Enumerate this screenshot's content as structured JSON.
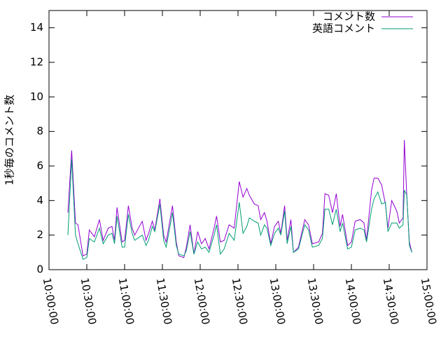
{
  "chart_data": {
    "type": "line",
    "ylabel": "1秒毎のコメント数",
    "x": [
      "10:15:00",
      "10:18:00",
      "10:21:00",
      "10:23:00",
      "10:27:00",
      "10:30:00",
      "10:32:00",
      "10:36:00",
      "10:40:00",
      "10:43:00",
      "10:47:00",
      "10:50:00",
      "10:52:00",
      "10:54:00",
      "10:58:00",
      "11:00:00",
      "11:03:00",
      "11:06:00",
      "11:08:00",
      "11:14:00",
      "11:17:00",
      "11:19:00",
      "11:22:00",
      "11:24:00",
      "11:28:00",
      "11:31:00",
      "11:33:00",
      "11:38:00",
      "11:41:00",
      "11:43:00",
      "11:47:00",
      "11:49:00",
      "11:52:00",
      "11:55:00",
      "11:58:00",
      "12:01:00",
      "12:04:00",
      "12:07:00",
      "12:11:00",
      "12:13:00",
      "12:16:00",
      "12:19:00",
      "12:23:00",
      "12:27:00",
      "12:31:00",
      "12:34:00",
      "12:37:00",
      "12:39:00",
      "12:43:00",
      "12:46:00",
      "12:48:00",
      "12:51:00",
      "12:53:00",
      "12:56:00",
      "12:59:00",
      "13:02:00",
      "13:04:00",
      "13:07:00",
      "13:09:00",
      "13:12:00",
      "13:14:00",
      "13:18:00",
      "13:23:00",
      "13:26:00",
      "13:29:00",
      "13:34:00",
      "13:37:00",
      "13:39:00",
      "13:42:00",
      "13:45:00",
      "13:48:00",
      "13:51:00",
      "13:53:00",
      "13:57:00",
      "14:00:00",
      "14:03:00",
      "14:07:00",
      "14:10:00",
      "14:12:00",
      "14:16:00",
      "14:18:00",
      "14:21:00",
      "14:24:00",
      "14:27:00",
      "14:29:00",
      "14:32:00",
      "14:36:00",
      "14:38:00",
      "14:41:00",
      "14:42:00",
      "14:44:00",
      "14:46:00",
      "14:48:00"
    ],
    "series": [
      {
        "name": "コメント数",
        "color": "#9400d3",
        "values": [
          3.3,
          6.9,
          2.7,
          2.6,
          0.8,
          0.9,
          2.3,
          1.9,
          2.9,
          1.7,
          2.4,
          2.5,
          1.7,
          3.6,
          1.6,
          1.7,
          3.7,
          2.4,
          2.0,
          2.8,
          1.7,
          2.1,
          2.8,
          2.3,
          4.1,
          2.0,
          1.6,
          3.7,
          1.6,
          0.8,
          0.7,
          1.3,
          2.6,
          0.9,
          2.2,
          1.5,
          1.8,
          1.2,
          2.4,
          3.1,
          1.6,
          1.7,
          2.6,
          2.4,
          5.1,
          4.2,
          4.7,
          4.3,
          3.8,
          3.7,
          2.9,
          3.3,
          2.8,
          1.5,
          2.5,
          2.8,
          2.1,
          3.7,
          1.7,
          2.9,
          1.0,
          1.3,
          2.9,
          2.6,
          1.5,
          1.6,
          2.1,
          4.4,
          4.3,
          3.3,
          4.4,
          2.5,
          3.2,
          1.4,
          1.6,
          2.8,
          2.9,
          2.7,
          1.7,
          4.6,
          5.3,
          5.3,
          4.9,
          3.8,
          2.4,
          4.0,
          3.4,
          2.7,
          3.0,
          7.5,
          4.2,
          1.6,
          1.0
        ]
      },
      {
        "name": "英語コメント",
        "color": "#009e73",
        "values": [
          2.0,
          6.4,
          2.0,
          1.5,
          0.6,
          0.7,
          1.8,
          1.6,
          2.4,
          1.5,
          2.0,
          2.1,
          1.5,
          3.1,
          1.3,
          1.3,
          3.2,
          2.1,
          1.7,
          2.0,
          1.4,
          1.7,
          2.5,
          2.2,
          3.8,
          1.7,
          1.3,
          3.3,
          1.4,
          0.9,
          0.8,
          1.1,
          2.2,
          0.9,
          1.6,
          1.2,
          1.3,
          1.0,
          2.0,
          2.6,
          0.9,
          1.2,
          2.1,
          1.7,
          3.9,
          2.1,
          2.5,
          3.0,
          2.8,
          2.7,
          2.0,
          2.6,
          2.4,
          1.4,
          2.1,
          2.4,
          2.0,
          3.4,
          1.5,
          2.5,
          1.0,
          1.2,
          2.6,
          2.3,
          1.3,
          1.4,
          1.8,
          3.5,
          3.5,
          2.6,
          3.5,
          2.2,
          2.7,
          1.2,
          1.3,
          2.3,
          2.4,
          2.3,
          1.6,
          3.5,
          4.1,
          4.5,
          3.8,
          3.9,
          2.2,
          2.7,
          2.7,
          2.4,
          2.6,
          4.6,
          4.3,
          1.4,
          1.0
        ]
      }
    ],
    "xlim": [
      "10:00:00",
      "15:00:00"
    ],
    "xticks": [
      "10:00:00",
      "10:30:00",
      "11:00:00",
      "11:30:00",
      "12:00:00",
      "12:30:00",
      "13:00:00",
      "13:30:00",
      "14:00:00",
      "14:30:00",
      "15:00:00"
    ],
    "ylim": [
      0,
      15
    ],
    "yticks": [
      0,
      2,
      4,
      6,
      8,
      10,
      12,
      14
    ],
    "legend": "top-right"
  }
}
